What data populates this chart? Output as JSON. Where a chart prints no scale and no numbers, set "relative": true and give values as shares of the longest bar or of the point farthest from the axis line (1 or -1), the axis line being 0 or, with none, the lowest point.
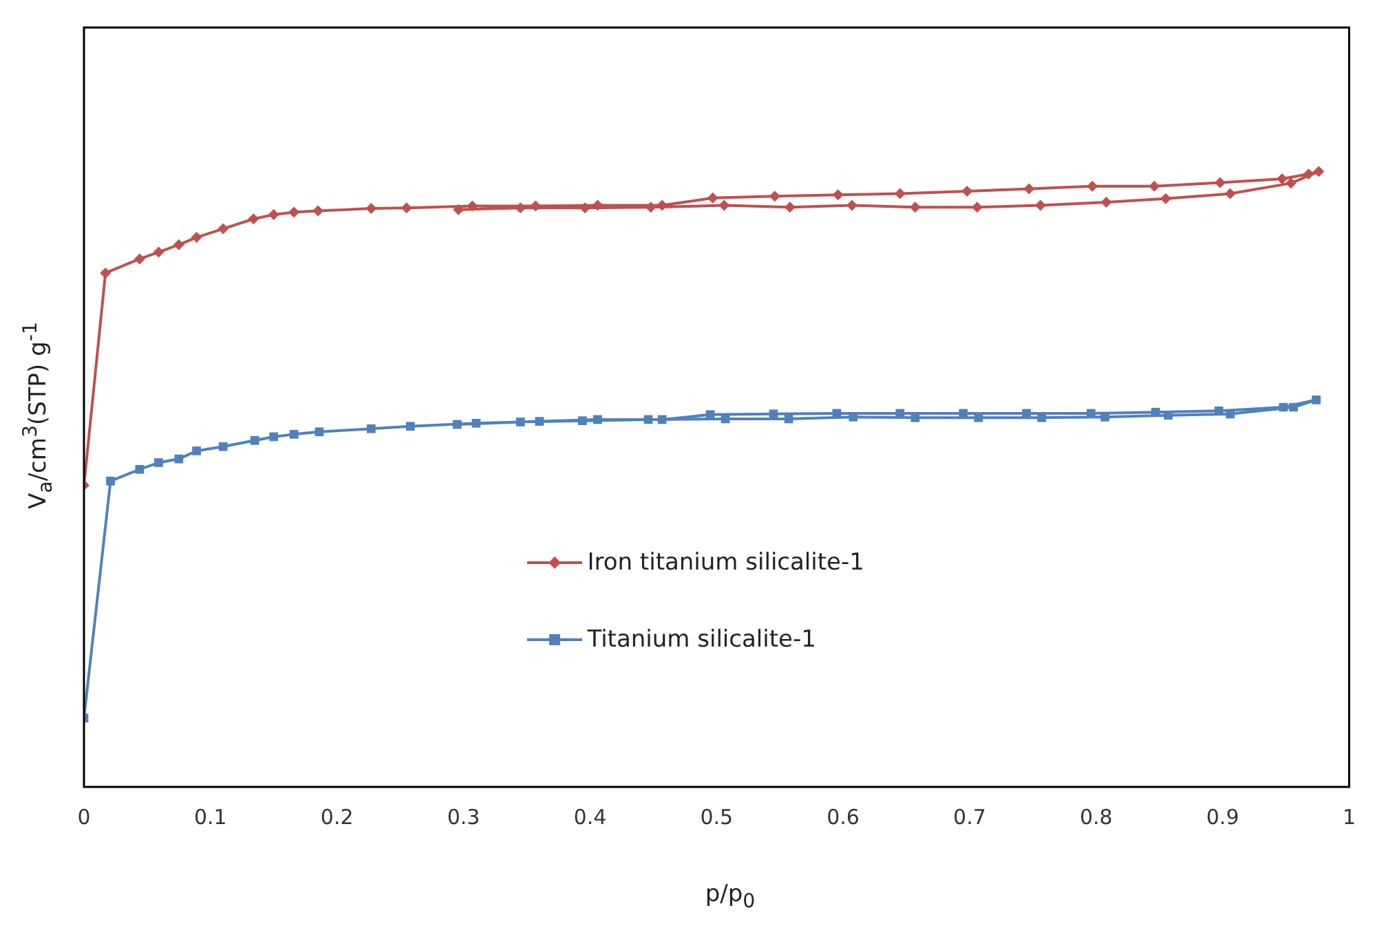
{
  "chart_data": {
    "type": "line",
    "relative": true,
    "xlabel": "p/p$_{0}$",
    "ylabel": "V$_{a}$/cm$^{3}$(STP) g$^{-1}$",
    "xlim": [
      0,
      1
    ],
    "xticks": [
      0,
      0.1,
      0.2,
      0.3,
      0.4,
      0.5,
      0.6,
      0.7,
      0.8,
      0.9,
      1
    ],
    "grid": false,
    "legend": "center",
    "line_style": "solid",
    "series": [
      {
        "name": "Iron titanium silicalite-1",
        "color": "#c0504d",
        "marker": "diamond",
        "x": [
          0,
          0.017,
          0.044,
          0.059,
          0.075,
          0.089,
          0.11,
          0.134,
          0.15,
          0.166,
          0.185,
          0.227,
          0.255,
          0.307,
          0.357,
          0.406,
          0.457,
          0.497,
          0.546,
          0.596,
          0.645,
          0.698,
          0.747,
          0.797,
          0.846,
          0.898,
          0.947,
          0.968,
          0.976,
          0.954,
          0.906,
          0.855,
          0.808,
          0.756,
          0.706,
          0.657,
          0.607,
          0.558,
          0.506,
          0.448,
          0.396,
          0.345,
          0.296
        ],
        "values": [
          0.49,
          0.835,
          0.858,
          0.869,
          0.881,
          0.893,
          0.907,
          0.923,
          0.93,
          0.934,
          0.936,
          0.94,
          0.941,
          0.944,
          0.944,
          0.945,
          0.945,
          0.957,
          0.96,
          0.962,
          0.964,
          0.968,
          0.972,
          0.976,
          0.976,
          0.982,
          0.988,
          0.996,
          1,
          0.981,
          0.964,
          0.956,
          0.95,
          0.945,
          0.942,
          0.942,
          0.945,
          0.942,
          0.945,
          0.942,
          0.941,
          0.941,
          0.938
        ]
      },
      {
        "name": "Titanium silicalite-1",
        "color": "#4f81bd",
        "marker": "square",
        "x": [
          0,
          0.021,
          0.044,
          0.059,
          0.075,
          0.089,
          0.11,
          0.135,
          0.15,
          0.166,
          0.186,
          0.227,
          0.258,
          0.31,
          0.36,
          0.406,
          0.457,
          0.495,
          0.545,
          0.595,
          0.645,
          0.695,
          0.745,
          0.796,
          0.847,
          0.897,
          0.948,
          0.974,
          0.956,
          0.906,
          0.857,
          0.807,
          0.757,
          0.707,
          0.657,
          0.608,
          0.557,
          0.507,
          0.446,
          0.394,
          0.345,
          0.295
        ],
        "values": [
          0.112,
          0.497,
          0.516,
          0.527,
          0.533,
          0.546,
          0.553,
          0.563,
          0.569,
          0.573,
          0.577,
          0.582,
          0.586,
          0.591,
          0.594,
          0.597,
          0.597,
          0.605,
          0.606,
          0.607,
          0.607,
          0.607,
          0.607,
          0.607,
          0.609,
          0.611,
          0.617,
          0.629,
          0.617,
          0.606,
          0.604,
          0.601,
          0.6,
          0.6,
          0.6,
          0.601,
          0.598,
          0.598,
          0.597,
          0.595,
          0.593,
          0.589
        ]
      }
    ]
  }
}
